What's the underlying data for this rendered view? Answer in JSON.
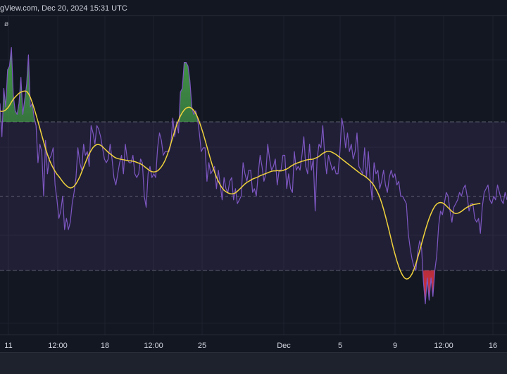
{
  "header": {
    "attribution": "gView.com, Dec 20, 2024 15:31 UTC",
    "pane_label": "ø"
  },
  "colors": {
    "background": "#131722",
    "grid": "#1e222d",
    "band_fill": "#7e57c2",
    "band_line": "#787b86",
    "rsi_line": "#7e57c2",
    "ma_line": "#f0d23c",
    "overbought_fill": "#4caf50",
    "oversold_fill": "#f23645"
  },
  "chart_data": {
    "type": "line",
    "ylim": [
      0,
      100
    ],
    "bands": {
      "upper": 70,
      "middle": 50,
      "lower": 30
    },
    "x_ticks": [
      "11",
      "12:00",
      "18",
      "12:00",
      "25",
      "Dec",
      "5",
      "9",
      "12:00",
      "16"
    ],
    "series": [
      {
        "values": [
          75,
          66,
          79,
          74,
          84,
          85,
          90,
          77,
          73,
          72,
          75,
          82,
          72,
          76,
          80,
          88,
          74,
          75,
          71,
          69,
          59,
          64,
          62,
          50,
          65,
          56,
          60,
          61,
          63,
          53,
          49,
          44,
          46,
          50,
          41,
          44,
          41,
          43,
          48,
          51,
          55,
          63,
          59,
          57,
          64,
          61,
          62,
          58,
          69,
          67,
          64,
          69,
          68,
          66,
          63,
          60,
          59,
          60,
          64,
          60,
          55,
          53,
          56,
          59,
          61,
          56,
          64,
          60,
          59,
          59,
          61,
          56,
          55,
          56,
          60,
          59,
          50,
          47,
          56,
          58,
          55,
          56,
          55,
          63,
          67,
          65,
          61,
          62,
          62,
          62,
          64,
          71,
          66,
          70,
          67,
          78,
          79,
          86,
          86,
          85,
          81,
          74,
          72,
          73,
          71,
          67,
          62,
          63,
          63,
          54,
          59,
          56,
          57,
          58,
          52,
          57,
          53,
          49,
          55,
          52,
          51,
          54,
          55,
          49,
          52,
          48,
          49,
          50,
          59,
          56,
          54,
          57,
          57,
          51,
          52,
          50,
          56,
          61,
          58,
          54,
          56,
          64,
          60,
          57,
          58,
          60,
          53,
          57,
          57,
          61,
          61,
          52,
          56,
          52,
          51,
          62,
          57,
          58,
          57,
          61,
          66,
          58,
          56,
          64,
          57,
          60,
          46,
          60,
          64,
          63,
          69,
          61,
          56,
          61,
          59,
          57,
          58,
          56,
          56,
          62,
          71,
          68,
          63,
          67,
          62,
          64,
          60,
          62,
          67,
          58,
          57,
          56,
          63,
          55,
          62,
          54,
          49,
          59,
          56,
          57,
          52,
          54,
          57,
          53,
          51,
          55,
          57,
          55,
          56,
          53,
          54,
          50,
          50,
          49,
          48,
          40,
          36,
          33,
          31,
          30,
          35,
          38,
          36,
          27,
          21,
          28,
          22,
          28,
          23,
          30,
          34,
          42,
          46,
          45,
          48,
          51,
          50,
          46,
          43,
          47,
          48,
          49,
          51,
          50,
          52,
          53,
          50,
          46,
          48,
          48,
          44,
          43,
          44,
          40,
          47,
          51,
          52,
          53,
          49,
          48,
          50,
          49,
          53,
          51,
          49,
          48,
          51,
          49
        ]
      },
      {
        "values": [
          72.9,
          72.8,
          72.9,
          73.2,
          73.7,
          74.4,
          75.3,
          76.1,
          76.7,
          77.2,
          77.7,
          78.0,
          78.2,
          78.3,
          78.2,
          77.6,
          76.6,
          75.2,
          73.6,
          71.9,
          70.1,
          68.3,
          66.4,
          64.6,
          62.8,
          61.2,
          59.8,
          58.6,
          57.6,
          56.7,
          55.9,
          55.3,
          54.6,
          53.9,
          53.3,
          52.8,
          52.4,
          52.2,
          52.3,
          52.7,
          53.3,
          54.2,
          55.2,
          56.5,
          57.8,
          59.0,
          60.3,
          61.4,
          62.3,
          63.1,
          63.6,
          63.9,
          63.9,
          63.7,
          63.3,
          62.8,
          62.3,
          61.8,
          61.4,
          61.0,
          60.6,
          60.3,
          60.1,
          60.0,
          59.9,
          59.8,
          59.7,
          59.6,
          59.5,
          59.5,
          59.4,
          59.3,
          59.1,
          58.9,
          58.7,
          58.4,
          58.0,
          57.6,
          57.2,
          56.8,
          56.6,
          56.5,
          56.6,
          56.8,
          57.3,
          57.9,
          58.7,
          59.7,
          61.0,
          62.5,
          64.2,
          65.9,
          67.5,
          69.1,
          70.4,
          71.6,
          72.5,
          73.2,
          73.7,
          73.9,
          73.9,
          73.6,
          73.1,
          72.3,
          71.3,
          70.0,
          68.5,
          66.9,
          65.1,
          63.3,
          61.5,
          59.7,
          58.0,
          56.5,
          55.1,
          54.0,
          53.0,
          52.2,
          51.6,
          51.2,
          50.9,
          50.7,
          50.6,
          50.7,
          50.9,
          51.3,
          51.8,
          52.3,
          52.8,
          53.3,
          53.7,
          54.0,
          54.3,
          54.6,
          54.8,
          55.0,
          55.2,
          55.5,
          55.7,
          55.9,
          56.1,
          56.3,
          56.5,
          56.7,
          56.8,
          56.8,
          56.9,
          56.8,
          56.8,
          56.9,
          57.1,
          57.3,
          57.6,
          58.0,
          58.3,
          58.6,
          58.8,
          59.0,
          59.2,
          59.4,
          59.5,
          59.7,
          59.8,
          59.9,
          59.9,
          60.0,
          60.2,
          60.4,
          60.7,
          61.1,
          61.5,
          61.8,
          62.0,
          62.1,
          62.0,
          61.8,
          61.5,
          61.2,
          60.8,
          60.4,
          60.0,
          59.6,
          59.2,
          58.8,
          58.4,
          58.0,
          57.6,
          57.2,
          56.8,
          56.4,
          56.0,
          55.7,
          55.4,
          55.0,
          54.6,
          54.1,
          53.5,
          52.8,
          51.9,
          50.9,
          49.7,
          48.2,
          46.5,
          44.6,
          42.6,
          40.5,
          38.4,
          36.3,
          34.4,
          32.6,
          31.0,
          29.7,
          28.7,
          28.0,
          27.7,
          27.8,
          28.3,
          29.1,
          30.3,
          31.8,
          33.5,
          35.3,
          37.2,
          39.0,
          40.8,
          42.5,
          44.0,
          45.3,
          46.4,
          47.3,
          47.9,
          48.2,
          48.3,
          48.2,
          47.9,
          47.4,
          46.9,
          46.4,
          45.9,
          45.5,
          45.3,
          45.4,
          45.6,
          45.9,
          46.3,
          46.7,
          47.0,
          47.3,
          47.5,
          47.7,
          47.8,
          47.9,
          48.0,
          48.1
        ]
      }
    ]
  }
}
